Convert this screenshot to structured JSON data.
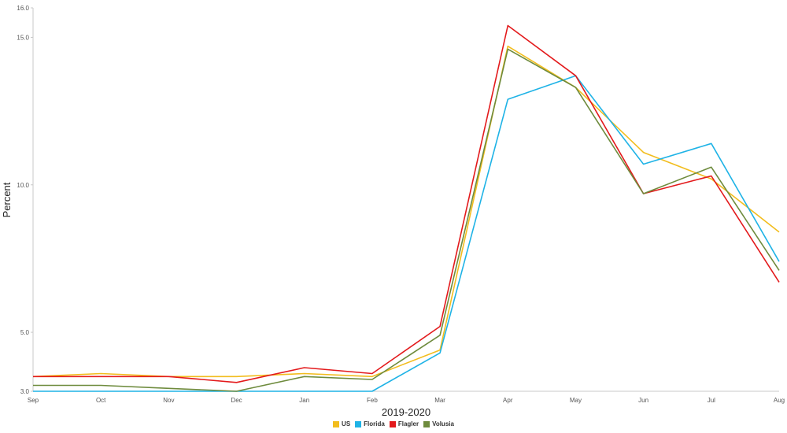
{
  "chart_data": {
    "type": "line",
    "title": "",
    "xlabel": "2019-2020",
    "ylabel": "Percent",
    "categories": [
      "Sep",
      "Oct",
      "Nov",
      "Dec",
      "Jan",
      "Feb",
      "Mar",
      "Apr",
      "May",
      "Jun",
      "Jul",
      "Aug"
    ],
    "ylim": [
      3.0,
      16.0
    ],
    "yticks": [
      "3.0",
      "5.0",
      "10.0",
      "15.0",
      "16.0"
    ],
    "grid": false,
    "legend_position": "bottom",
    "series": [
      {
        "name": "US",
        "color": "#f2bd1e",
        "values": [
          3.5,
          3.6,
          3.5,
          3.5,
          3.6,
          3.5,
          4.4,
          14.7,
          13.3,
          11.1,
          10.2,
          8.4
        ]
      },
      {
        "name": "Florida",
        "color": "#1fb3e6",
        "values": [
          3.0,
          3.0,
          3.0,
          3.0,
          3.0,
          3.0,
          4.3,
          12.9,
          13.7,
          10.7,
          11.4,
          7.4
        ]
      },
      {
        "name": "Flagler",
        "color": "#e31a1c",
        "values": [
          3.5,
          3.5,
          3.5,
          3.3,
          3.8,
          3.6,
          5.2,
          15.4,
          13.7,
          9.7,
          10.3,
          6.7
        ]
      },
      {
        "name": "Volusia",
        "color": "#6e8b3d",
        "values": [
          3.2,
          3.2,
          3.1,
          3.0,
          3.5,
          3.4,
          4.9,
          14.6,
          13.3,
          9.7,
          10.6,
          7.1
        ]
      }
    ]
  }
}
